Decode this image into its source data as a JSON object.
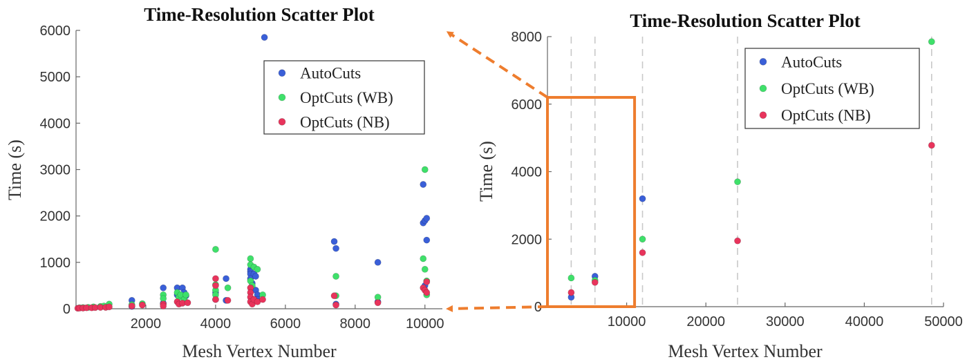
{
  "colors": {
    "autocuts": "#3a5fd8",
    "optcuts_wb": "#3fe06a",
    "optcuts_nb": "#e8345c",
    "highlight": "#ee7d2e"
  },
  "chart_data": [
    {
      "type": "scatter",
      "title": "Time-Resolution Scatter Plot",
      "xlabel": "Mesh Vertex Number",
      "ylabel": "Time (s)",
      "xlim": [
        0,
        10500
      ],
      "ylim": [
        0,
        6000
      ],
      "xticks": [
        2000,
        4000,
        6000,
        8000,
        10000
      ],
      "yticks": [
        0,
        1000,
        2000,
        3000,
        4000,
        5000,
        6000
      ],
      "legend_position": "top-right",
      "series": [
        {
          "name": "AutoCuts",
          "points": [
            [
              1600,
              180
            ],
            [
              1600,
              50
            ],
            [
              2500,
              450
            ],
            [
              2500,
              120
            ],
            [
              2900,
              450
            ],
            [
              2900,
              300
            ],
            [
              3050,
              450
            ],
            [
              3100,
              350
            ],
            [
              3150,
              280
            ],
            [
              4000,
              350
            ],
            [
              4000,
              200
            ],
            [
              4300,
              650
            ],
            [
              4300,
              180
            ],
            [
              5000,
              850
            ],
            [
              5000,
              800
            ],
            [
              5000,
              750
            ],
            [
              5000,
              650
            ],
            [
              5050,
              550
            ],
            [
              5050,
              450
            ],
            [
              5100,
              750
            ],
            [
              5150,
              700
            ],
            [
              5150,
              400
            ],
            [
              5200,
              300
            ],
            [
              5200,
              200
            ],
            [
              5400,
              5850
            ],
            [
              7400,
              1450
            ],
            [
              7450,
              1300
            ],
            [
              7450,
              100
            ],
            [
              8650,
              1000
            ],
            [
              8650,
              150
            ],
            [
              9950,
              2680
            ],
            [
              9950,
              1850
            ],
            [
              10000,
              1900
            ],
            [
              10050,
              1950
            ],
            [
              10050,
              1480
            ],
            [
              10000,
              500
            ]
          ]
        },
        {
          "name": "OptCuts (WB)",
          "points": [
            [
              100,
              20
            ],
            [
              200,
              25
            ],
            [
              350,
              30
            ],
            [
              500,
              40
            ],
            [
              700,
              50
            ],
            [
              800,
              60
            ],
            [
              950,
              100
            ],
            [
              1600,
              90
            ],
            [
              1900,
              110
            ],
            [
              2500,
              300
            ],
            [
              2500,
              220
            ],
            [
              2900,
              350
            ],
            [
              2950,
              250
            ],
            [
              3000,
              300
            ],
            [
              3100,
              200
            ],
            [
              3150,
              300
            ],
            [
              4000,
              1280
            ],
            [
              4000,
              520
            ],
            [
              4000,
              400
            ],
            [
              4000,
              300
            ],
            [
              4350,
              450
            ],
            [
              5000,
              1080
            ],
            [
              5000,
              950
            ],
            [
              5000,
              600
            ],
            [
              5050,
              500
            ],
            [
              5100,
              900
            ],
            [
              5200,
              850
            ],
            [
              5350,
              300
            ],
            [
              7450,
              700
            ],
            [
              7450,
              280
            ],
            [
              8650,
              250
            ],
            [
              10000,
              3000
            ],
            [
              9950,
              1080
            ],
            [
              10000,
              850
            ],
            [
              10050,
              600
            ],
            [
              10050,
              300
            ]
          ]
        },
        {
          "name": "OptCuts (NB)",
          "points": [
            [
              50,
              10
            ],
            [
              100,
              15
            ],
            [
              200,
              15
            ],
            [
              300,
              20
            ],
            [
              450,
              20
            ],
            [
              550,
              25
            ],
            [
              700,
              30
            ],
            [
              850,
              30
            ],
            [
              950,
              40
            ],
            [
              1600,
              60
            ],
            [
              1900,
              80
            ],
            [
              2500,
              100
            ],
            [
              2500,
              60
            ],
            [
              2900,
              150
            ],
            [
              2950,
              100
            ],
            [
              3050,
              120
            ],
            [
              3200,
              130
            ],
            [
              4000,
              650
            ],
            [
              4000,
              500
            ],
            [
              4000,
              200
            ],
            [
              4350,
              180
            ],
            [
              5000,
              450
            ],
            [
              5000,
              350
            ],
            [
              5000,
              250
            ],
            [
              5000,
              150
            ],
            [
              5050,
              100
            ],
            [
              5100,
              200
            ],
            [
              5200,
              150
            ],
            [
              5350,
              200
            ],
            [
              7450,
              80
            ],
            [
              7400,
              280
            ],
            [
              8650,
              130
            ],
            [
              9950,
              450
            ],
            [
              10000,
              400
            ],
            [
              10050,
              580
            ],
            [
              10050,
              350
            ]
          ]
        }
      ]
    },
    {
      "type": "scatter",
      "title": "Time-Resolution Scatter Plot",
      "xlabel": "Mesh Vertex Number",
      "ylabel": "Time (s)",
      "xlim": [
        0,
        50000
      ],
      "ylim": [
        0,
        8000
      ],
      "xticks": [
        10000,
        20000,
        30000,
        40000,
        50000
      ],
      "yticks": [
        0,
        2000,
        4000,
        6000,
        8000
      ],
      "grid": "vertical dashed lines at sampled resolutions",
      "vlines": [
        3000,
        6000,
        12000,
        24000,
        48500
      ],
      "highlight_box": {
        "x": [
          0,
          11000
        ],
        "y": [
          0,
          6200
        ]
      },
      "legend_position": "top-right",
      "series": [
        {
          "name": "AutoCuts",
          "points": [
            [
              3000,
              280
            ],
            [
              6000,
              900
            ],
            [
              12000,
              3200
            ]
          ]
        },
        {
          "name": "OptCuts (WB)",
          "points": [
            [
              3000,
              850
            ],
            [
              6000,
              780
            ],
            [
              12000,
              2000
            ],
            [
              24000,
              3700
            ],
            [
              48500,
              7850
            ]
          ]
        },
        {
          "name": "OptCuts (NB)",
          "points": [
            [
              3000,
              420
            ],
            [
              6000,
              720
            ],
            [
              12000,
              1600
            ],
            [
              24000,
              1950
            ],
            [
              48500,
              4780
            ]
          ]
        }
      ]
    }
  ]
}
